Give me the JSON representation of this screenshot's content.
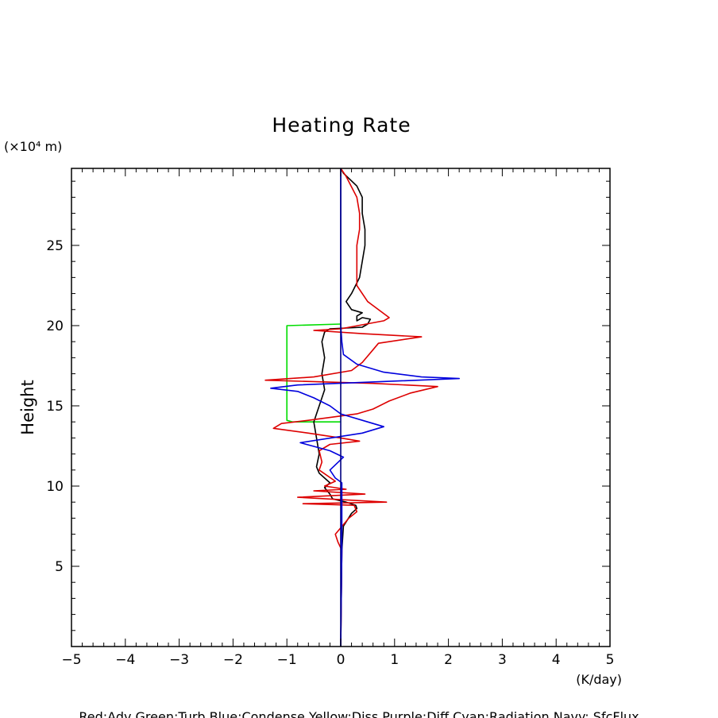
{
  "chart_data": {
    "type": "line",
    "title": "Heating Rate",
    "ylabel": "Height",
    "yunit": "(×10⁴ m)",
    "xunit": "(K/day)",
    "xlim": [
      -5,
      5
    ],
    "ylim": [
      0,
      29.8
    ],
    "xticks": [
      -5,
      -4,
      -3,
      -2,
      -1,
      0,
      1,
      2,
      3,
      4,
      5
    ],
    "yticks": [
      5,
      10,
      15,
      20,
      25
    ],
    "legend_text": "Red:Adv  Green:Turb  Blue:Condense  Yellow:Diss  Purple:Diff  Cyan:Radiation  Navy: SfcFlux",
    "series": [
      {
        "color": "#00dd00",
        "points": [
          [
            0,
            20.1
          ],
          [
            -1.0,
            20.0
          ],
          [
            -1.0,
            14.1
          ],
          [
            -0.9,
            14.0
          ],
          [
            0,
            14.0
          ]
        ]
      },
      {
        "color": "#000000",
        "points": [
          [
            0,
            0
          ],
          [
            0.02,
            6.0
          ],
          [
            0.05,
            7.5
          ],
          [
            0.2,
            8.3
          ],
          [
            0.3,
            8.6
          ],
          [
            0.28,
            8.8
          ],
          [
            0.1,
            9.0
          ],
          [
            -0.15,
            9.2
          ],
          [
            -0.2,
            9.5
          ],
          [
            -0.3,
            9.9
          ],
          [
            -0.2,
            10.2
          ],
          [
            -0.4,
            10.8
          ],
          [
            -0.45,
            11.2
          ],
          [
            -0.4,
            12.0
          ],
          [
            -0.45,
            13.0
          ],
          [
            -0.5,
            14.0
          ],
          [
            -0.4,
            15.0
          ],
          [
            -0.3,
            16.0
          ],
          [
            -0.35,
            17.0
          ],
          [
            -0.3,
            18.0
          ],
          [
            -0.35,
            19.0
          ],
          [
            -0.3,
            19.6
          ],
          [
            -0.2,
            19.8
          ],
          [
            0.4,
            19.9
          ],
          [
            0.5,
            20.1
          ],
          [
            0.55,
            20.4
          ],
          [
            0.4,
            20.5
          ],
          [
            0.3,
            20.3
          ],
          [
            0.3,
            20.6
          ],
          [
            0.4,
            20.8
          ],
          [
            0.2,
            21.0
          ],
          [
            0.1,
            21.5
          ],
          [
            0.2,
            22.0
          ],
          [
            0.35,
            23.0
          ],
          [
            0.4,
            24.0
          ],
          [
            0.45,
            25.0
          ],
          [
            0.45,
            26.0
          ],
          [
            0.4,
            27.0
          ],
          [
            0.4,
            28.0
          ],
          [
            0.3,
            28.7
          ],
          [
            0.05,
            29.5
          ],
          [
            0,
            29.8
          ]
        ]
      },
      {
        "color": "#dd0000",
        "points": [
          [
            0,
            0
          ],
          [
            0.02,
            6.0
          ],
          [
            -0.05,
            6.5
          ],
          [
            -0.1,
            7.0
          ],
          [
            0.15,
            8.0
          ],
          [
            0.3,
            8.4
          ],
          [
            0.25,
            8.8
          ],
          [
            -0.7,
            8.9
          ],
          [
            0.85,
            9.0
          ],
          [
            -0.8,
            9.3
          ],
          [
            0.45,
            9.5
          ],
          [
            -0.5,
            9.7
          ],
          [
            0.1,
            9.8
          ],
          [
            -0.3,
            10.0
          ],
          [
            -0.1,
            10.3
          ],
          [
            -0.4,
            11.0
          ],
          [
            -0.35,
            11.5
          ],
          [
            -0.4,
            12.2
          ],
          [
            -0.2,
            12.6
          ],
          [
            0.35,
            12.8
          ],
          [
            0,
            13.0
          ],
          [
            -0.6,
            13.3
          ],
          [
            -1.25,
            13.6
          ],
          [
            -1.1,
            13.9
          ],
          [
            -0.6,
            14.1
          ],
          [
            0.3,
            14.5
          ],
          [
            0.6,
            14.8
          ],
          [
            0.9,
            15.3
          ],
          [
            1.3,
            15.8
          ],
          [
            1.8,
            16.2
          ],
          [
            0.6,
            16.4
          ],
          [
            -1.4,
            16.6
          ],
          [
            -0.5,
            16.8
          ],
          [
            0.2,
            17.2
          ],
          [
            0.4,
            17.7
          ],
          [
            0.6,
            18.5
          ],
          [
            0.7,
            18.9
          ],
          [
            1.5,
            19.3
          ],
          [
            0.4,
            19.5
          ],
          [
            -0.5,
            19.7
          ],
          [
            0,
            19.8
          ],
          [
            0.8,
            20.3
          ],
          [
            0.9,
            20.5
          ],
          [
            0.5,
            21.5
          ],
          [
            0.3,
            22.5
          ],
          [
            0.3,
            23.5
          ],
          [
            0.3,
            25.0
          ],
          [
            0.35,
            26.0
          ],
          [
            0.35,
            27.0
          ],
          [
            0.3,
            28.0
          ],
          [
            0.1,
            29.3
          ],
          [
            0,
            29.8
          ]
        ]
      },
      {
        "color": "#0000dd",
        "points": [
          [
            0,
            0
          ],
          [
            0.02,
            6.0
          ],
          [
            0.02,
            10.2
          ],
          [
            -0.1,
            10.5
          ],
          [
            -0.2,
            11.0
          ],
          [
            0.05,
            11.8
          ],
          [
            -0.2,
            12.2
          ],
          [
            -0.75,
            12.7
          ],
          [
            0.4,
            13.3
          ],
          [
            0.8,
            13.7
          ],
          [
            0.5,
            14.0
          ],
          [
            0,
            14.5
          ],
          [
            -0.2,
            15.0
          ],
          [
            -0.5,
            15.5
          ],
          [
            -0.8,
            15.9
          ],
          [
            -1.3,
            16.1
          ],
          [
            -0.8,
            16.3
          ],
          [
            2.2,
            16.7
          ],
          [
            1.5,
            16.8
          ],
          [
            0.8,
            17.1
          ],
          [
            0.3,
            17.6
          ],
          [
            0.05,
            18.2
          ],
          [
            0.02,
            19.0
          ],
          [
            0,
            20.0
          ],
          [
            0,
            29.8
          ]
        ]
      },
      {
        "color": "#000080",
        "points": [
          [
            0,
            0
          ],
          [
            0,
            29.8
          ]
        ]
      }
    ]
  }
}
